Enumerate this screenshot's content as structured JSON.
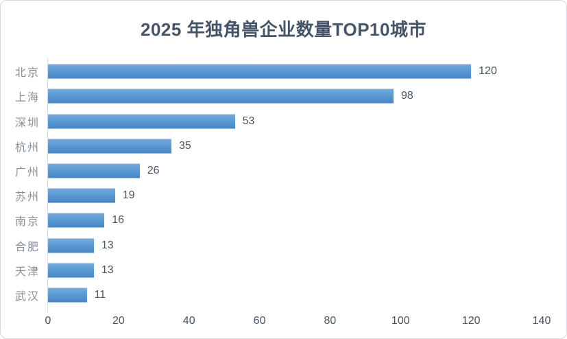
{
  "chart_data": {
    "type": "bar",
    "orientation": "horizontal",
    "title": "2025 年独角兽企业数量TOP10城市",
    "categories": [
      "北京",
      "上海",
      "深圳",
      "杭州",
      "广州",
      "苏州",
      "南京",
      "合肥",
      "天津",
      "武汉"
    ],
    "values": [
      120,
      98,
      53,
      35,
      26,
      19,
      16,
      13,
      13,
      11
    ],
    "data_labels": [
      "120",
      "98",
      "53",
      "35",
      "26",
      "19",
      "16",
      "13",
      "13",
      "11"
    ],
    "xlabel": "",
    "ylabel": "",
    "xlim": [
      0,
      140
    ],
    "x_ticks": [
      0,
      20,
      40,
      60,
      80,
      100,
      120,
      140
    ],
    "grid": false,
    "legend": "none",
    "colors": {
      "bar_top": "#76abe0",
      "bar_mid": "#5b9bd5",
      "bar_bottom": "#4a83c4",
      "title_text": "#44546a",
      "category_label_text": "#85909c",
      "value_label_text": "#44546a",
      "tick_label_text": "#44546a",
      "axis_line": "#d9d9d9",
      "frame_border": "#d3d9e3",
      "background": "#ffffff"
    }
  }
}
